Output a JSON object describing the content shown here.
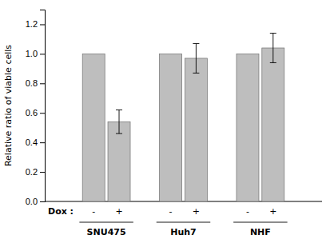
{
  "chart_data": {
    "type": "bar",
    "ylabel": "Relative ratio of viable cells",
    "annotations": [
      "Dox :"
    ],
    "categories": [
      "SNU475",
      "Huh7",
      "NHF"
    ],
    "series": [
      {
        "name": "-",
        "color": "#bebebe",
        "values": [
          1.0,
          1.0,
          1.0
        ],
        "errors": [
          0.0,
          0.0,
          0.0
        ]
      },
      {
        "name": "+",
        "color": "#bebebe",
        "values": [
          0.54,
          0.97,
          1.04
        ],
        "errors": [
          0.08,
          0.1,
          0.1
        ]
      }
    ],
    "ylim": [
      0.0,
      1.3
    ],
    "yticks": [
      {
        "value": 0.0,
        "label": "0.0"
      },
      0.2,
      0.4,
      0.6,
      0.8,
      {
        "value": 1.0,
        "label": "1.0"
      },
      1.2
    ],
    "grid": false
  }
}
